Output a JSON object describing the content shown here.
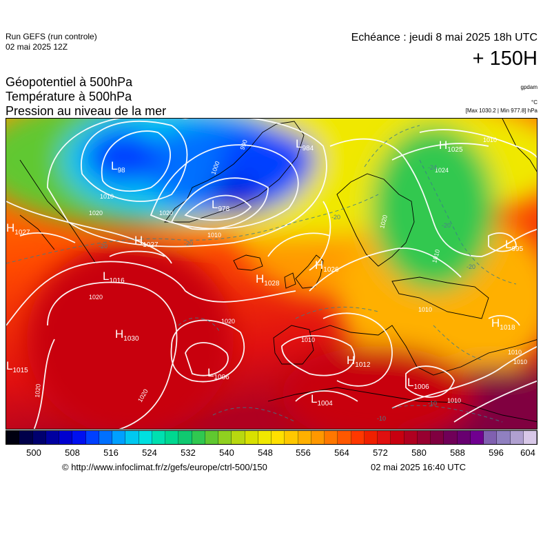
{
  "header": {
    "run_title": "Run GEFS (run controle)",
    "run_date": "02 mai 2025 12Z",
    "valid_time": "Echéance : jeudi 8 mai 2025 18h UTC",
    "lead_time": "+ 150H"
  },
  "layers": {
    "line1": "Géopotentiel à 500hPa",
    "line2": "Température à 500hPa",
    "line3": "Pression au niveau de la mer"
  },
  "units": {
    "geopotential": "gpdam",
    "temperature": "°C",
    "range": "[Max 1030.2 | Min 977.8] hPa"
  },
  "pressure_centers": [
    {
      "type": "L",
      "value": "984"
    },
    {
      "type": "L",
      "value": "978"
    },
    {
      "type": "L",
      "value": "98"
    },
    {
      "type": "H",
      "value": "1027"
    },
    {
      "type": "H",
      "value": "1027"
    },
    {
      "type": "H",
      "value": "1028"
    },
    {
      "type": "H",
      "value": "1026"
    },
    {
      "type": "H",
      "value": "1030"
    },
    {
      "type": "L",
      "value": "1006"
    },
    {
      "type": "L",
      "value": "1015"
    },
    {
      "type": "H",
      "value": "1012"
    },
    {
      "type": "L",
      "value": "1006"
    },
    {
      "type": "L",
      "value": "1004"
    },
    {
      "type": "L",
      "value": "995"
    },
    {
      "type": "H",
      "value": "1018"
    },
    {
      "type": "H",
      "value": "1025"
    },
    {
      "type": "L",
      "value": "1016"
    }
  ],
  "isobar_labels": [
    "1000",
    "990",
    "1010",
    "1020",
    "1010",
    "1020",
    "1020",
    "1010",
    "1020",
    "1020",
    "1010",
    "1010",
    "1020",
    "1020",
    "1010",
    "1010",
    "1024",
    "1010",
    "1010"
  ],
  "isotherm_labels": [
    "-20",
    "-20",
    "-20",
    "-20",
    "-20",
    "-10",
    "-10",
    "-24"
  ],
  "colorbar": {
    "colors": [
      "#000010",
      "#00004a",
      "#00006e",
      "#0000a0",
      "#0000d0",
      "#0010f0",
      "#0040ff",
      "#0070ff",
      "#00a0ff",
      "#00c8f0",
      "#00e0e0",
      "#00e0b0",
      "#00d890",
      "#10c870",
      "#30c850",
      "#60c830",
      "#90d020",
      "#b8d810",
      "#d8e000",
      "#f0e800",
      "#ffe000",
      "#ffc800",
      "#ffb000",
      "#ff9800",
      "#ff7800",
      "#ff5800",
      "#ff3800",
      "#f02000",
      "#e01010",
      "#c80010",
      "#b00020",
      "#980030",
      "#800040",
      "#700058",
      "#680070",
      "#700090",
      "#8060b0",
      "#9080c0",
      "#b0a0d0",
      "#d8c8e8"
    ],
    "ticks": [
      "500",
      "508",
      "516",
      "524",
      "532",
      "540",
      "548",
      "556",
      "564",
      "572",
      "580",
      "588",
      "596",
      "604"
    ]
  },
  "footer": {
    "url": "© http://www.infoclimat.fr/z/gefs/europe/ctrl-500/150",
    "issue_time": "02 mai 2025 16:40 UTC"
  }
}
